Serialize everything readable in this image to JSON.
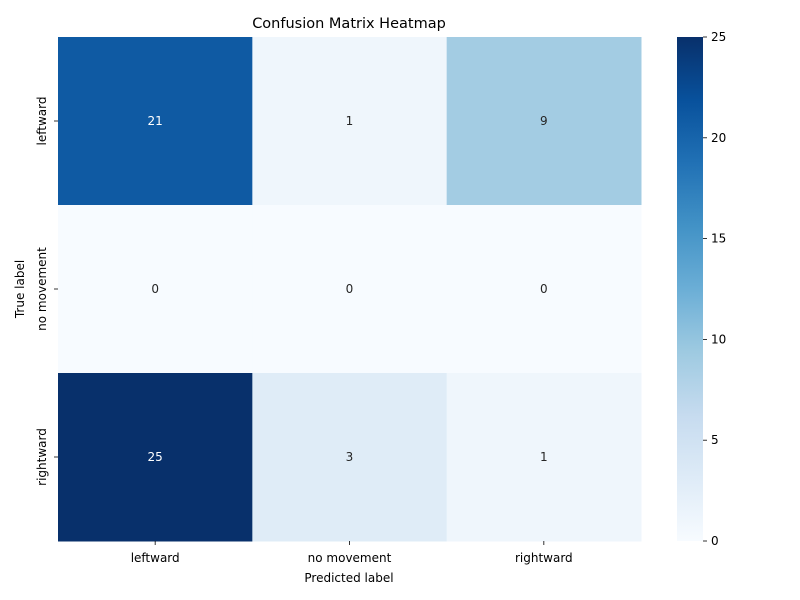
{
  "chart_data": {
    "type": "heatmap",
    "title": "Confusion Matrix Heatmap",
    "xlabel": "Predicted label",
    "ylabel": "True label",
    "x_categories": [
      "leftward",
      "no movement",
      "rightward"
    ],
    "y_categories": [
      "leftward",
      "no movement",
      "rightward"
    ],
    "values": [
      [
        21,
        1,
        9
      ],
      [
        0,
        0,
        0
      ],
      [
        25,
        3,
        1
      ]
    ],
    "color_scale": {
      "name": "Blues",
      "min": 0,
      "max": 25,
      "ticks": [
        0,
        5,
        10,
        15,
        20,
        25
      ],
      "stops": [
        "#f7fbff",
        "#deebf7",
        "#c6dbef",
        "#9ecae1",
        "#6baed6",
        "#4292c6",
        "#2171b5",
        "#08519c",
        "#08306b"
      ]
    },
    "annotations": true,
    "grid": false
  }
}
